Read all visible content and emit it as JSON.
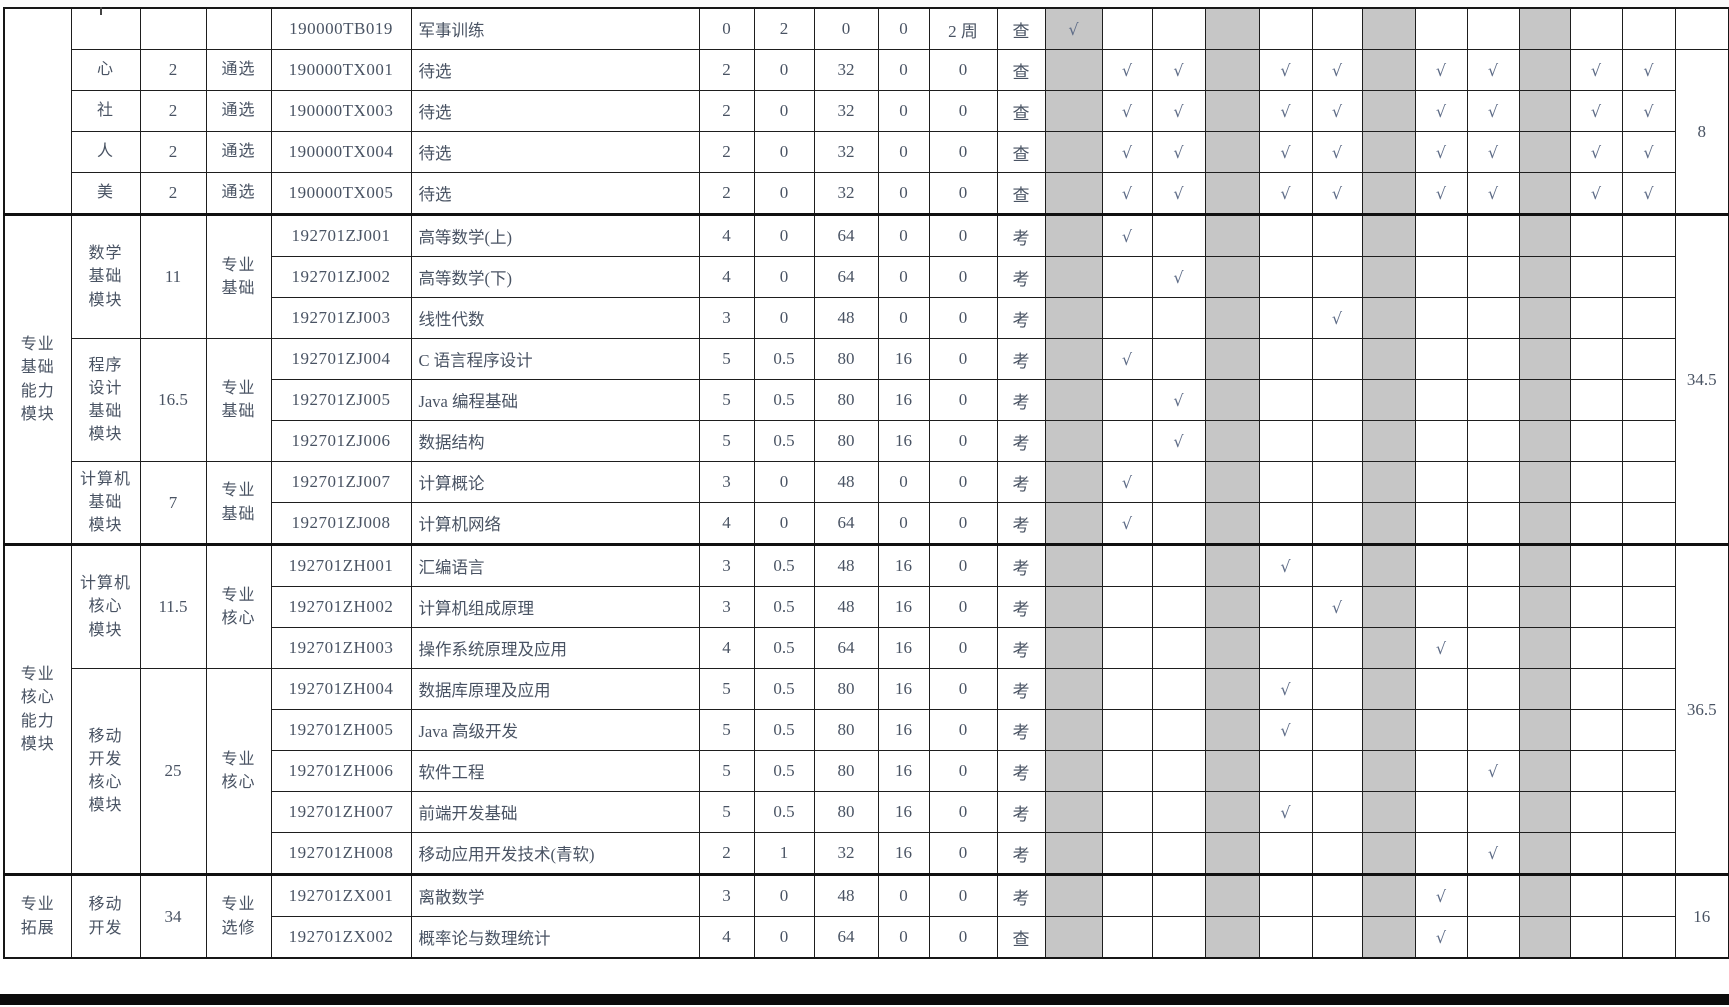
{
  "document": {
    "check_symbol": "√",
    "colors": {
      "shaded_column": "#c6c6c6",
      "text": "#495363",
      "check": "#5e6c87",
      "border": "#1e1e1e"
    },
    "table": {
      "shaded_grid_columns": [
        1,
        4,
        7,
        10
      ],
      "grid_column_count": 12,
      "sections": [
        {
          "category": "",
          "total_groups": [
            {
              "span": 1,
              "label": ""
            },
            {
              "span": 4,
              "label": "8"
            }
          ],
          "modules": [
            {
              "label": "",
              "credits": "",
              "type": "",
              "courses": [
                {
                  "code": "190000TB019",
                  "name": "军事训练",
                  "nums": [
                    "0",
                    "2",
                    "0",
                    "0",
                    "2 周"
                  ],
                  "exam": "查",
                  "checks": [
                    1
                  ]
                }
              ]
            },
            {
              "label": "心",
              "credits": "2",
              "type": "通选",
              "courses": [
                {
                  "code": "190000TX001",
                  "name": "待选",
                  "nums": [
                    "2",
                    "0",
                    "32",
                    "0",
                    "0"
                  ],
                  "exam": "查",
                  "checks": [
                    2,
                    3,
                    5,
                    6,
                    8,
                    9,
                    11,
                    12
                  ]
                }
              ]
            },
            {
              "label": "社",
              "credits": "2",
              "type": "通选",
              "courses": [
                {
                  "code": "190000TX003",
                  "name": "待选",
                  "nums": [
                    "2",
                    "0",
                    "32",
                    "0",
                    "0"
                  ],
                  "exam": "查",
                  "checks": [
                    2,
                    3,
                    5,
                    6,
                    8,
                    9,
                    11,
                    12
                  ]
                }
              ]
            },
            {
              "label": "人",
              "credits": "2",
              "type": "通选",
              "courses": [
                {
                  "code": "190000TX004",
                  "name": "待选",
                  "nums": [
                    "2",
                    "0",
                    "32",
                    "0",
                    "0"
                  ],
                  "exam": "查",
                  "checks": [
                    2,
                    3,
                    5,
                    6,
                    8,
                    9,
                    11,
                    12
                  ]
                }
              ]
            },
            {
              "label": "美",
              "credits": "2",
              "type": "通选",
              "courses": [
                {
                  "code": "190000TX005",
                  "name": "待选",
                  "nums": [
                    "2",
                    "0",
                    "32",
                    "0",
                    "0"
                  ],
                  "exam": "查",
                  "checks": [
                    2,
                    3,
                    5,
                    6,
                    8,
                    9,
                    11,
                    12
                  ]
                }
              ]
            }
          ]
        },
        {
          "category": "专业\n基础\n能力\n模块",
          "total_groups": [
            {
              "span": 8,
              "label": "34.5"
            }
          ],
          "modules": [
            {
              "label": "数学\n基础\n模块",
              "credits": "11",
              "type": "专业\n基础",
              "courses": [
                {
                  "code": "192701ZJ001",
                  "name": "高等数学(上)",
                  "nums": [
                    "4",
                    "0",
                    "64",
                    "0",
                    "0"
                  ],
                  "exam": "考",
                  "checks": [
                    2
                  ]
                },
                {
                  "code": "192701ZJ002",
                  "name": "高等数学(下)",
                  "nums": [
                    "4",
                    "0",
                    "64",
                    "0",
                    "0"
                  ],
                  "exam": "考",
                  "checks": [
                    3
                  ]
                },
                {
                  "code": "192701ZJ003",
                  "name": "线性代数",
                  "nums": [
                    "3",
                    "0",
                    "48",
                    "0",
                    "0"
                  ],
                  "exam": "考",
                  "checks": [
                    6
                  ]
                }
              ]
            },
            {
              "label": "程序\n设计\n基础\n模块",
              "credits": "16.5",
              "type": "专业\n基础",
              "courses": [
                {
                  "code": "192701ZJ004",
                  "name": "C 语言程序设计",
                  "nums": [
                    "5",
                    "0.5",
                    "80",
                    "16",
                    "0"
                  ],
                  "exam": "考",
                  "checks": [
                    2
                  ]
                },
                {
                  "code": "192701ZJ005",
                  "name": "Java 编程基础",
                  "nums": [
                    "5",
                    "0.5",
                    "80",
                    "16",
                    "0"
                  ],
                  "exam": "考",
                  "checks": [
                    3
                  ]
                },
                {
                  "code": "192701ZJ006",
                  "name": "数据结构",
                  "nums": [
                    "5",
                    "0.5",
                    "80",
                    "16",
                    "0"
                  ],
                  "exam": "考",
                  "checks": [
                    3
                  ]
                }
              ]
            },
            {
              "label": "计算机\n基础\n模块",
              "credits": "7",
              "type": "专业\n基础",
              "courses": [
                {
                  "code": "192701ZJ007",
                  "name": "计算概论",
                  "nums": [
                    "3",
                    "0",
                    "48",
                    "0",
                    "0"
                  ],
                  "exam": "考",
                  "checks": [
                    2
                  ]
                },
                {
                  "code": "192701ZJ008",
                  "name": "计算机网络",
                  "nums": [
                    "4",
                    "0",
                    "64",
                    "0",
                    "0"
                  ],
                  "exam": "考",
                  "checks": [
                    2
                  ]
                }
              ]
            }
          ]
        },
        {
          "category": "专业\n核心\n能力\n模块",
          "total_groups": [
            {
              "span": 8,
              "label": "36.5"
            }
          ],
          "modules": [
            {
              "label": "计算机\n核心\n模块",
              "credits": "11.5",
              "type": "专业\n核心",
              "courses": [
                {
                  "code": "192701ZH001",
                  "name": "汇编语言",
                  "nums": [
                    "3",
                    "0.5",
                    "48",
                    "16",
                    "0"
                  ],
                  "exam": "考",
                  "checks": [
                    5
                  ]
                },
                {
                  "code": "192701ZH002",
                  "name": "计算机组成原理",
                  "nums": [
                    "3",
                    "0.5",
                    "48",
                    "16",
                    "0"
                  ],
                  "exam": "考",
                  "checks": [
                    6
                  ]
                },
                {
                  "code": "192701ZH003",
                  "name": "操作系统原理及应用",
                  "nums": [
                    "4",
                    "0.5",
                    "64",
                    "16",
                    "0"
                  ],
                  "exam": "考",
                  "checks": [
                    8
                  ]
                }
              ]
            },
            {
              "label": "移动\n开发\n核心\n模块",
              "credits": "25",
              "type": "专业\n核心",
              "courses": [
                {
                  "code": "192701ZH004",
                  "name": "数据库原理及应用",
                  "nums": [
                    "5",
                    "0.5",
                    "80",
                    "16",
                    "0"
                  ],
                  "exam": "考",
                  "checks": [
                    5
                  ]
                },
                {
                  "code": "192701ZH005",
                  "name": "Java 高级开发",
                  "nums": [
                    "5",
                    "0.5",
                    "80",
                    "16",
                    "0"
                  ],
                  "exam": "考",
                  "checks": [
                    5
                  ]
                },
                {
                  "code": "192701ZH006",
                  "name": "软件工程",
                  "nums": [
                    "5",
                    "0.5",
                    "80",
                    "16",
                    "0"
                  ],
                  "exam": "考",
                  "checks": [
                    9
                  ]
                },
                {
                  "code": "192701ZH007",
                  "name": "前端开发基础",
                  "nums": [
                    "5",
                    "0.5",
                    "80",
                    "16",
                    "0"
                  ],
                  "exam": "考",
                  "checks": [
                    5
                  ]
                },
                {
                  "code": "192701ZH008",
                  "name": "移动应用开发技术(青软)",
                  "nums": [
                    "2",
                    "1",
                    "32",
                    "16",
                    "0"
                  ],
                  "exam": "考",
                  "checks": [
                    9
                  ]
                }
              ]
            }
          ]
        },
        {
          "category": "专业\n拓展",
          "total_groups": [
            {
              "span": 2,
              "label": "16"
            }
          ],
          "modules": [
            {
              "label": "移动\n开发",
              "credits": "34",
              "type": "专业\n选修",
              "courses": [
                {
                  "code": "192701ZX001",
                  "name": "离散数学",
                  "nums": [
                    "3",
                    "0",
                    "48",
                    "0",
                    "0"
                  ],
                  "exam": "考",
                  "checks": [
                    8
                  ]
                },
                {
                  "code": "192701ZX002",
                  "name": "概率论与数理统计",
                  "nums": [
                    "4",
                    "0",
                    "64",
                    "0",
                    "0"
                  ],
                  "exam": "查",
                  "checks": [
                    8
                  ]
                }
              ]
            }
          ]
        }
      ]
    }
  }
}
